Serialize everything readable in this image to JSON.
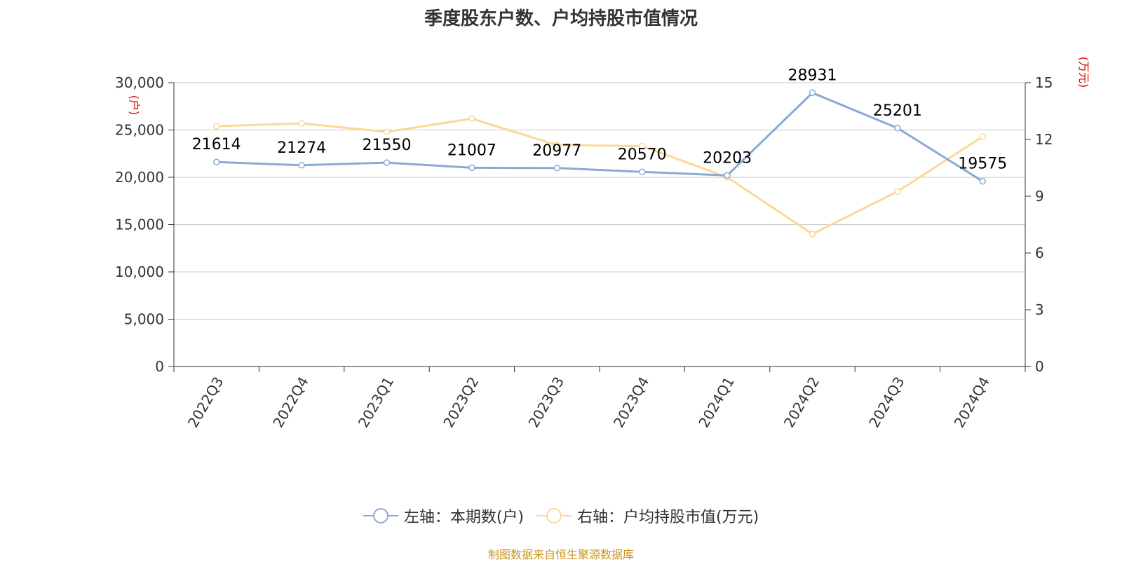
{
  "chart_data": {
    "type": "line",
    "title": "季度股东户数、户均持股市值情况",
    "categories": [
      "2022Q3",
      "2022Q4",
      "2023Q1",
      "2023Q2",
      "2023Q3",
      "2023Q4",
      "2024Q1",
      "2024Q2",
      "2024Q3",
      "2024Q4"
    ],
    "series": [
      {
        "name": "左轴：本期数(户)",
        "axis": "left",
        "color": "#8aaad6",
        "values": [
          21614,
          21274,
          21550,
          21007,
          20977,
          20570,
          20203,
          28931,
          25201,
          19575
        ]
      },
      {
        "name": "右轴：户均持股市值(万元)",
        "axis": "right",
        "color": "#fcd898",
        "values": [
          12.7,
          12.85,
          12.4,
          13.1,
          11.7,
          11.65,
          10.0,
          7.0,
          9.25,
          12.15
        ]
      }
    ],
    "left_axis": {
      "unit": "(户)",
      "ylim": [
        0,
        30000
      ],
      "ticks": [
        "0",
        "5,000",
        "10,000",
        "15,000",
        "20,000",
        "25,000",
        "30,000"
      ]
    },
    "right_axis": {
      "unit": "(万元)",
      "ylim": [
        0,
        15
      ],
      "ticks": [
        "0",
        "3",
        "6",
        "9",
        "12",
        "15"
      ]
    },
    "grid": true,
    "legend_position": "bottom"
  },
  "source": "制图数据来自恒生聚源数据库"
}
